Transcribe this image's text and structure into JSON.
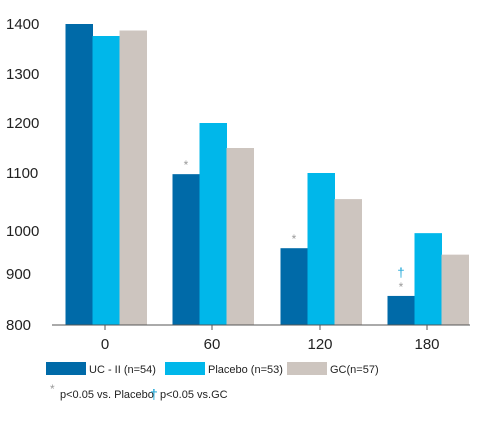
{
  "chart_data": {
    "type": "bar",
    "title": "",
    "xlabel": "",
    "ylabel": "",
    "categories": [
      "0",
      "60",
      "120",
      "180"
    ],
    "series": [
      {
        "name": "UC - II (n=54)",
        "color": "#006aa8",
        "values": [
          1400,
          1098,
          960,
          857
        ]
      },
      {
        "name": "Placebo (n=53)",
        "color": "#00b7ea",
        "values": [
          1376,
          1200,
          1100,
          995
        ]
      },
      {
        "name": "GC(n=57)",
        "color": "#cdc5bf",
        "values": [
          1387,
          1150,
          1055,
          945
        ]
      }
    ],
    "y_ticks": [
      "1400",
      "1300",
      "1200",
      "1100",
      "1000",
      "900",
      "800"
    ],
    "ylim": [
      800,
      1400
    ],
    "grid": false,
    "legend_position": "bottom",
    "annotations": [
      {
        "category": "60",
        "series": "UC - II (n=54)",
        "symbol": "*"
      },
      {
        "category": "120",
        "series": "UC - II (n=54)",
        "symbol": "*"
      },
      {
        "category": "180",
        "series": "UC - II (n=54)",
        "symbol": "*"
      },
      {
        "category": "180",
        "series": "UC - II (n=54)",
        "symbol": "†"
      }
    ],
    "footnotes": [
      {
        "symbol": "*",
        "text": "p<0.05 vs. Placebo",
        "color": "#9a9a9a"
      },
      {
        "symbol": "†",
        "text": "p<0.05 vs.GC",
        "color": "#13a3d6"
      }
    ]
  }
}
